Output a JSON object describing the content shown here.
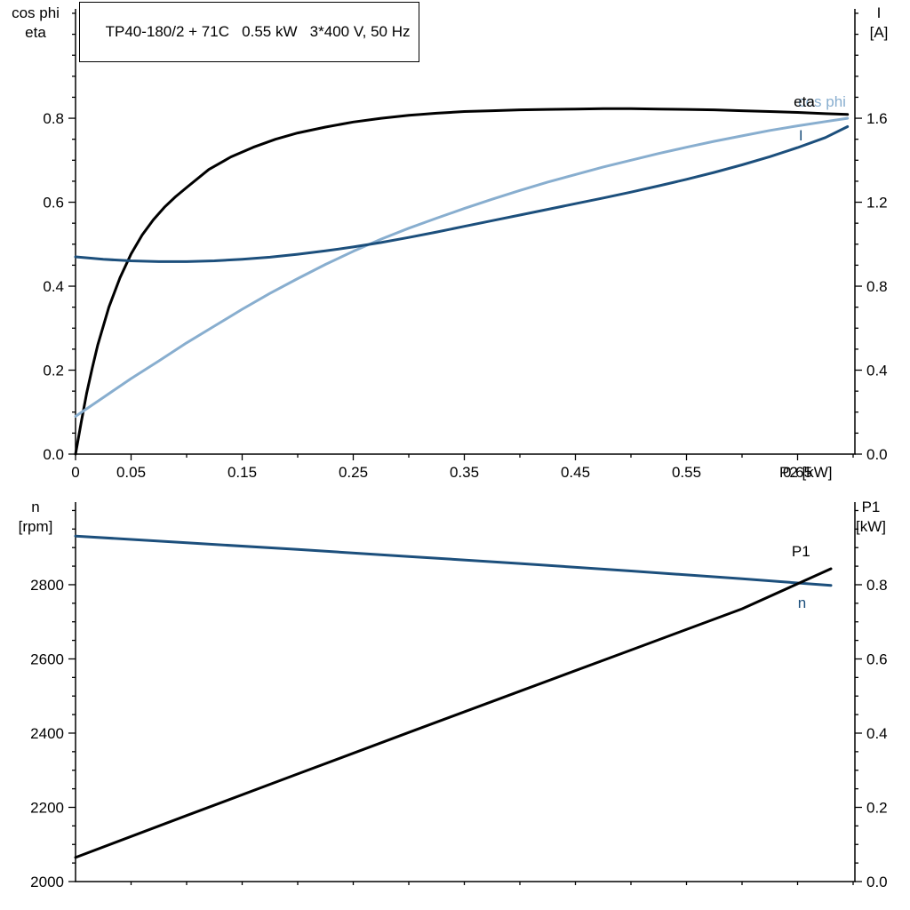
{
  "colors": {
    "black": "#000000",
    "dark_blue": "#1c4f7c",
    "light_blue": "#88aecf"
  },
  "axis_corner_labels": {
    "top_left_line1": "cos phi",
    "top_left_line2": "eta",
    "top_right_line1": "I",
    "top_right_line2": "[A]",
    "bottom_left_line1": "n",
    "bottom_left_line2": "[rpm]",
    "bottom_right_line1": "P1",
    "bottom_right_line2": "[kW]"
  },
  "chart_data": [
    {
      "id": "top",
      "type": "line",
      "title": "TP40-180/2 + 71C   0.55 kW   3*400 V, 50 Hz",
      "xlabel": "P2 [kW]",
      "ylabel_left": "cos phi / eta",
      "ylabel_right": "I [A]",
      "grid": false,
      "legend": "inline-curve-labels",
      "xlim": [
        0,
        0.7016
      ],
      "ylim_left": [
        0,
        1.0605
      ],
      "ylim_right": [
        0,
        2.121
      ],
      "x_minor_step": 0.05,
      "left_minor_step": 0.05,
      "right_minor_step": 0.1,
      "x_major_ticks": [
        {
          "v": 0,
          "label": "0"
        },
        {
          "v": 0.05,
          "label": "0.05"
        },
        {
          "v": 0.15,
          "label": "0.15"
        },
        {
          "v": 0.25,
          "label": "0.25"
        },
        {
          "v": 0.35,
          "label": "0.35"
        },
        {
          "v": 0.45,
          "label": "0.45"
        },
        {
          "v": 0.55,
          "label": "0.55"
        },
        {
          "v": 0.65,
          "label": "0.65"
        }
      ],
      "left_major_ticks": [
        {
          "v": 0,
          "label": "0.0"
        },
        {
          "v": 0.2,
          "label": "0.2"
        },
        {
          "v": 0.4,
          "label": "0.4"
        },
        {
          "v": 0.6,
          "label": "0.6"
        },
        {
          "v": 0.8,
          "label": "0.8"
        }
      ],
      "right_major_ticks": [
        {
          "v": 0,
          "label": "0.0"
        },
        {
          "v": 0.4,
          "label": "0.4"
        },
        {
          "v": 0.8,
          "label": "0.8"
        },
        {
          "v": 1.2,
          "label": "1.2"
        },
        {
          "v": 1.6,
          "label": "1.6"
        }
      ],
      "series": [
        {
          "name": "eta",
          "axis": "left",
          "color_key": "black",
          "points": [
            [
              0,
              0
            ],
            [
              0.005,
              0.075
            ],
            [
              0.01,
              0.145
            ],
            [
              0.015,
              0.205
            ],
            [
              0.02,
              0.26
            ],
            [
              0.03,
              0.35
            ],
            [
              0.04,
              0.42
            ],
            [
              0.05,
              0.477
            ],
            [
              0.06,
              0.522
            ],
            [
              0.07,
              0.558
            ],
            [
              0.08,
              0.588
            ],
            [
              0.09,
              0.613
            ],
            [
              0.1,
              0.635
            ],
            [
              0.12,
              0.678
            ],
            [
              0.14,
              0.708
            ],
            [
              0.16,
              0.731
            ],
            [
              0.18,
              0.75
            ],
            [
              0.2,
              0.765
            ],
            [
              0.225,
              0.779
            ],
            [
              0.25,
              0.791
            ],
            [
              0.275,
              0.8
            ],
            [
              0.3,
              0.807
            ],
            [
              0.325,
              0.812
            ],
            [
              0.35,
              0.816
            ],
            [
              0.375,
              0.818
            ],
            [
              0.4,
              0.82
            ],
            [
              0.425,
              0.821
            ],
            [
              0.45,
              0.822
            ],
            [
              0.475,
              0.823
            ],
            [
              0.5,
              0.823
            ],
            [
              0.525,
              0.822
            ],
            [
              0.55,
              0.821
            ],
            [
              0.575,
              0.82
            ],
            [
              0.6,
              0.818
            ],
            [
              0.625,
              0.816
            ],
            [
              0.65,
              0.814
            ],
            [
              0.675,
              0.811
            ],
            [
              0.695,
              0.809
            ]
          ]
        },
        {
          "name": "cos phi",
          "axis": "left",
          "color_key": "light_blue",
          "points": [
            [
              0,
              0.09
            ],
            [
              0.025,
              0.135
            ],
            [
              0.05,
              0.18
            ],
            [
              0.075,
              0.222
            ],
            [
              0.1,
              0.265
            ],
            [
              0.125,
              0.305
            ],
            [
              0.15,
              0.345
            ],
            [
              0.175,
              0.383
            ],
            [
              0.2,
              0.418
            ],
            [
              0.225,
              0.452
            ],
            [
              0.25,
              0.483
            ],
            [
              0.275,
              0.512
            ],
            [
              0.3,
              0.538
            ],
            [
              0.325,
              0.562
            ],
            [
              0.35,
              0.585
            ],
            [
              0.375,
              0.607
            ],
            [
              0.4,
              0.628
            ],
            [
              0.425,
              0.648
            ],
            [
              0.45,
              0.666
            ],
            [
              0.475,
              0.684
            ],
            [
              0.5,
              0.7
            ],
            [
              0.525,
              0.716
            ],
            [
              0.55,
              0.731
            ],
            [
              0.575,
              0.745
            ],
            [
              0.6,
              0.758
            ],
            [
              0.625,
              0.771
            ],
            [
              0.65,
              0.782
            ],
            [
              0.675,
              0.792
            ],
            [
              0.695,
              0.8
            ]
          ]
        },
        {
          "name": "I",
          "axis": "right",
          "color_key": "dark_blue",
          "points": [
            [
              0,
              0.94
            ],
            [
              0.025,
              0.928
            ],
            [
              0.05,
              0.921
            ],
            [
              0.075,
              0.917
            ],
            [
              0.1,
              0.917
            ],
            [
              0.125,
              0.921
            ],
            [
              0.15,
              0.928
            ],
            [
              0.175,
              0.938
            ],
            [
              0.2,
              0.952
            ],
            [
              0.225,
              0.968
            ],
            [
              0.25,
              0.987
            ],
            [
              0.275,
              1.008
            ],
            [
              0.3,
              1.032
            ],
            [
              0.325,
              1.058
            ],
            [
              0.35,
              1.085
            ],
            [
              0.375,
              1.112
            ],
            [
              0.4,
              1.139
            ],
            [
              0.425,
              1.166
            ],
            [
              0.45,
              1.193
            ],
            [
              0.475,
              1.22
            ],
            [
              0.5,
              1.248
            ],
            [
              0.525,
              1.278
            ],
            [
              0.55,
              1.309
            ],
            [
              0.575,
              1.342
            ],
            [
              0.6,
              1.378
            ],
            [
              0.625,
              1.417
            ],
            [
              0.65,
              1.46
            ],
            [
              0.675,
              1.508
            ],
            [
              0.695,
              1.56
            ]
          ]
        }
      ],
      "annotations": [
        {
          "text": "cos phi",
          "color_key": "light_blue",
          "axis": "left",
          "x": 0.672,
          "y": 0.84
        },
        {
          "text": "eta",
          "color_key": "black",
          "axis": "left",
          "x": 0.656,
          "y": 0.84
        },
        {
          "text": "I",
          "color_key": "dark_blue",
          "axis": "right",
          "x": 0.653,
          "y": 1.52
        }
      ]
    },
    {
      "id": "bottom",
      "type": "line",
      "title": "",
      "xlabel": "",
      "ylabel_left": "n [rpm]",
      "ylabel_right": "P1 [kW]",
      "grid": false,
      "legend": "inline-curve-labels",
      "xlim": [
        0,
        0.7016
      ],
      "ylim_left": [
        2000,
        3022.6
      ],
      "ylim_right": [
        0,
        1.0227
      ],
      "x_minor_step": 0.05,
      "left_minor_step": 50,
      "right_minor_step": 0.05,
      "x_major_ticks": [],
      "left_major_ticks": [
        {
          "v": 2000,
          "label": "2000"
        },
        {
          "v": 2200,
          "label": "2200"
        },
        {
          "v": 2400,
          "label": "2400"
        },
        {
          "v": 2600,
          "label": "2600"
        },
        {
          "v": 2800,
          "label": "2800"
        }
      ],
      "right_major_ticks": [
        {
          "v": 0,
          "label": "0.0"
        },
        {
          "v": 0.2,
          "label": "0.2"
        },
        {
          "v": 0.4,
          "label": "0.4"
        },
        {
          "v": 0.6,
          "label": "0.6"
        },
        {
          "v": 0.8,
          "label": "0.8"
        }
      ],
      "series": [
        {
          "name": "n",
          "axis": "left",
          "color_key": "dark_blue",
          "points": [
            [
              0,
              2931
            ],
            [
              0.1,
              2913
            ],
            [
              0.2,
              2895
            ],
            [
              0.3,
              2876
            ],
            [
              0.4,
              2857
            ],
            [
              0.5,
              2837
            ],
            [
              0.6,
              2816
            ],
            [
              0.68,
              2798
            ]
          ]
        },
        {
          "name": "P1",
          "axis": "right",
          "color_key": "black",
          "points": [
            [
              0,
              0.065
            ],
            [
              0.1,
              0.178
            ],
            [
              0.2,
              0.29
            ],
            [
              0.3,
              0.402
            ],
            [
              0.4,
              0.513
            ],
            [
              0.5,
              0.624
            ],
            [
              0.6,
              0.735
            ],
            [
              0.68,
              0.843
            ]
          ]
        }
      ],
      "annotations": [
        {
          "text": "P1",
          "color_key": "black",
          "axis": "right",
          "x": 0.653,
          "y": 0.891
        },
        {
          "text": "n",
          "color_key": "dark_blue",
          "axis": "left",
          "x": 0.654,
          "y": 2752
        }
      ]
    }
  ]
}
